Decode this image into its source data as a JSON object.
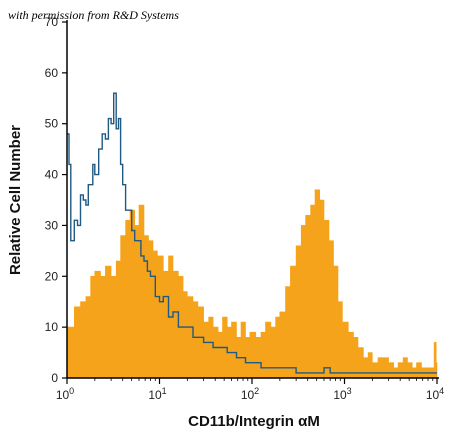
{
  "watermark": "with permission from R&D Systems",
  "chart_data": {
    "type": "area",
    "xscale": "log",
    "xlim": [
      1,
      10000
    ],
    "ylim": [
      0,
      70
    ],
    "xlabel": "CD11b/Integrin αM",
    "ylabel": "Relative Cell Number",
    "x_ticks": [
      {
        "value": 1,
        "base": "10",
        "exp": "0"
      },
      {
        "value": 10,
        "base": "10",
        "exp": "1"
      },
      {
        "value": 100,
        "base": "10",
        "exp": "2"
      },
      {
        "value": 1000,
        "base": "10",
        "exp": "3"
      },
      {
        "value": 10000,
        "base": "10",
        "exp": "4"
      }
    ],
    "y_ticks": [
      0,
      10,
      20,
      30,
      40,
      50,
      60,
      70
    ],
    "colors": {
      "filled": "#f5a31a",
      "outline": "#1f5a82"
    },
    "series": [
      {
        "style": "filled",
        "x": [
          1,
          1.2,
          1.4,
          1.6,
          1.8,
          2,
          2.3,
          2.6,
          3,
          3.4,
          3.8,
          4.3,
          4.8,
          5.4,
          6,
          6.8,
          7.6,
          8.5,
          9.5,
          11,
          12.5,
          14,
          16,
          18,
          20,
          23,
          26,
          30,
          34,
          38,
          43,
          48,
          54,
          60,
          68,
          76,
          85,
          95,
          110,
          125,
          140,
          160,
          180,
          200,
          230,
          260,
          300,
          340,
          380,
          430,
          480,
          540,
          600,
          680,
          760,
          850,
          950,
          1100,
          1250,
          1400,
          1600,
          1800,
          2000,
          2300,
          2600,
          3000,
          3400,
          3800,
          4300,
          4800,
          5400,
          6000,
          6800,
          7600,
          8500,
          9300,
          9800,
          10000
        ],
        "y": [
          10,
          14,
          15,
          16,
          20,
          21,
          20,
          22,
          20,
          23,
          28,
          31,
          33,
          30,
          34,
          28,
          27,
          25,
          24,
          21,
          24,
          21,
          20,
          17,
          16,
          15,
          14,
          11,
          12,
          10,
          9,
          12,
          10,
          11,
          8,
          11,
          8,
          9,
          8,
          9,
          11,
          10,
          12,
          13,
          18,
          22,
          26,
          30,
          32,
          34,
          37,
          35,
          31,
          27,
          22,
          15,
          11,
          9,
          8,
          6,
          4,
          5,
          3,
          4,
          4,
          3,
          2,
          3,
          4,
          3,
          2,
          3,
          2,
          2,
          2,
          7,
          3,
          1
        ]
      },
      {
        "style": "outline",
        "x": [
          1,
          1.05,
          1.1,
          1.2,
          1.3,
          1.4,
          1.5,
          1.6,
          1.7,
          1.8,
          1.9,
          2,
          2.2,
          2.4,
          2.6,
          2.8,
          3,
          3.2,
          3.4,
          3.6,
          3.8,
          4,
          4.3,
          4.6,
          5,
          5.4,
          5.8,
          6.3,
          6.8,
          7.4,
          8,
          9,
          10,
          11,
          12.5,
          14,
          16,
          18,
          20,
          23,
          26,
          30,
          34,
          38,
          43,
          48,
          54,
          60,
          68,
          76,
          85,
          95,
          110,
          125,
          140,
          160,
          180,
          200,
          250,
          300,
          400,
          500,
          600,
          700,
          800,
          900,
          1000,
          1300,
          1600,
          2000,
          2500,
          3000,
          4000,
          5000,
          6000,
          7000,
          8000,
          9000,
          10000
        ],
        "y": [
          48,
          42,
          27,
          31,
          30,
          36,
          35,
          34,
          38,
          38,
          42,
          40,
          45,
          48,
          47,
          51,
          50,
          56,
          49,
          51,
          42,
          38,
          33,
          33,
          29,
          27,
          27,
          24,
          23,
          21,
          20,
          16,
          15,
          16,
          12,
          13,
          10,
          10,
          10,
          8,
          8,
          7,
          7,
          6,
          6,
          6,
          5,
          5,
          4,
          4,
          3,
          3,
          3,
          2,
          2,
          2,
          2,
          2,
          2,
          1,
          1,
          1,
          2,
          1,
          1,
          1,
          1,
          1,
          1,
          1,
          1,
          1,
          1,
          1,
          1,
          1,
          1,
          1,
          1
        ]
      }
    ]
  }
}
